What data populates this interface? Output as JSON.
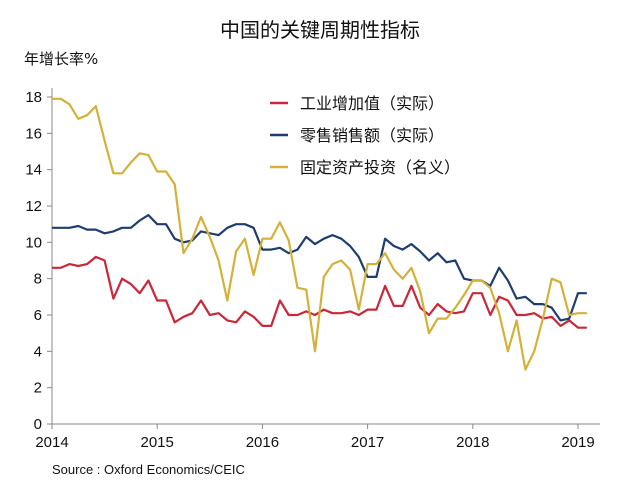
{
  "chart_data": {
    "type": "line",
    "title": "中国的关键周期性指标",
    "ylabel": "年增长率%",
    "xlabel": "",
    "source": "Source : Oxford Economics/CEIC",
    "ylim": [
      0,
      18
    ],
    "yticks": [
      0,
      2,
      4,
      6,
      8,
      10,
      12,
      14,
      16,
      18
    ],
    "xlim": [
      2014,
      2019.083
    ],
    "xticks": [
      2014,
      2015,
      2016,
      2017,
      2018,
      2019
    ],
    "x_start": "2014-01",
    "x_frequency": "monthly",
    "grid": false,
    "legend_position": "top-right",
    "series": [
      {
        "name": "工业增加值（实际）",
        "color": "#c8283a",
        "values": [
          8.6,
          8.6,
          8.8,
          8.7,
          8.8,
          9.2,
          9.0,
          6.9,
          8.0,
          7.7,
          7.2,
          7.9,
          6.8,
          6.8,
          5.6,
          5.9,
          6.1,
          6.8,
          6.0,
          6.1,
          5.7,
          5.6,
          6.2,
          5.9,
          5.4,
          5.4,
          6.8,
          6.0,
          6.0,
          6.2,
          6.0,
          6.3,
          6.1,
          6.1,
          6.2,
          6.0,
          6.3,
          6.3,
          7.6,
          6.5,
          6.5,
          7.6,
          6.4,
          6.0,
          6.6,
          6.2,
          6.1,
          6.2,
          7.2,
          7.2,
          6.0,
          7.0,
          6.8,
          6.0,
          6.0,
          6.1,
          5.8,
          5.9,
          5.4,
          5.7,
          5.3,
          5.3
        ]
      },
      {
        "name": "零售销售额（实际）",
        "color": "#1f3e6e",
        "values": [
          10.8,
          10.8,
          10.8,
          10.9,
          10.7,
          10.7,
          10.5,
          10.6,
          10.8,
          10.8,
          11.2,
          11.5,
          11.0,
          11.0,
          10.2,
          10.0,
          10.1,
          10.6,
          10.5,
          10.4,
          10.8,
          11.0,
          11.0,
          10.8,
          9.6,
          9.6,
          9.7,
          9.4,
          9.6,
          10.3,
          9.9,
          10.2,
          10.4,
          10.2,
          9.8,
          9.2,
          8.1,
          8.1,
          10.2,
          9.8,
          9.6,
          9.9,
          9.5,
          9.0,
          9.4,
          8.9,
          9.0,
          8.0,
          7.9,
          7.9,
          7.6,
          8.6,
          7.9,
          6.9,
          7.0,
          6.6,
          6.6,
          6.4,
          5.7,
          5.8,
          7.2,
          7.2
        ]
      },
      {
        "name": "固定资产投资（名义）",
        "color": "#d4b13a",
        "values": [
          17.9,
          17.9,
          17.6,
          16.8,
          17.0,
          17.5,
          15.6,
          13.8,
          13.8,
          14.4,
          14.9,
          14.8,
          13.9,
          13.9,
          13.2,
          9.4,
          10.2,
          11.4,
          10.3,
          9.0,
          6.8,
          9.5,
          10.2,
          8.2,
          10.2,
          10.2,
          11.1,
          10.1,
          7.5,
          7.4,
          4.0,
          8.1,
          8.8,
          9.0,
          8.5,
          6.3,
          8.8,
          8.8,
          9.4,
          8.5,
          8.0,
          8.6,
          7.3,
          5.0,
          5.8,
          5.8,
          6.4,
          7.1,
          7.9,
          7.9,
          7.5,
          6.1,
          4.0,
          5.7,
          3.0,
          4.0,
          5.8,
          8.0,
          7.8,
          6.0,
          6.1,
          6.1
        ]
      }
    ]
  }
}
